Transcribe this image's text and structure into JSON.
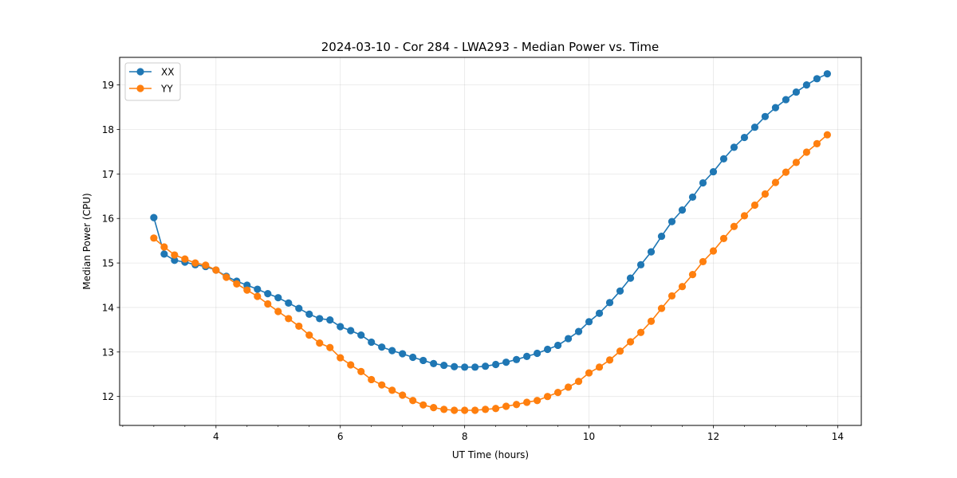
{
  "chart_data": {
    "type": "line",
    "title": "2024-03-10 - Cor 284 - LWA293 - Median Power vs. Time",
    "xlabel": "UT Time (hours)",
    "ylabel": "Median Power (CPU)",
    "xlim": [
      2.45,
      14.38
    ],
    "ylim": [
      11.35,
      19.62
    ],
    "xticks": [
      4,
      6,
      8,
      10,
      12,
      14
    ],
    "yticks": [
      12,
      13,
      14,
      15,
      16,
      17,
      18,
      19
    ],
    "grid": true,
    "legend_position": "top-left",
    "x": [
      3.0,
      3.1667,
      3.3333,
      3.5,
      3.6667,
      3.8333,
      4.0,
      4.1667,
      4.3333,
      4.5,
      4.6667,
      4.8333,
      5.0,
      5.1667,
      5.3333,
      5.5,
      5.6667,
      5.8333,
      6.0,
      6.1667,
      6.3333,
      6.5,
      6.6667,
      6.8333,
      7.0,
      7.1667,
      7.3333,
      7.5,
      7.6667,
      7.8333,
      8.0,
      8.1667,
      8.3333,
      8.5,
      8.6667,
      8.8333,
      9.0,
      9.1667,
      9.3333,
      9.5,
      9.6667,
      9.8333,
      10.0,
      10.1667,
      10.3333,
      10.5,
      10.6667,
      10.8333,
      11.0,
      11.1667,
      11.3333,
      11.5,
      11.6667,
      11.8333,
      12.0,
      12.1667,
      12.3333,
      12.5,
      12.6667,
      12.8333,
      13.0,
      13.1667,
      13.3333,
      13.5,
      13.6667,
      13.8333
    ],
    "series": [
      {
        "name": "XX",
        "color": "#1f77b4",
        "values": [
          16.02,
          15.2,
          15.06,
          15.02,
          14.96,
          14.92,
          14.84,
          14.7,
          14.59,
          14.5,
          14.41,
          14.31,
          14.22,
          14.1,
          13.98,
          13.85,
          13.75,
          13.72,
          13.57,
          13.48,
          13.38,
          13.22,
          13.11,
          13.03,
          12.96,
          12.88,
          12.81,
          12.74,
          12.7,
          12.67,
          12.66,
          12.66,
          12.68,
          12.72,
          12.77,
          12.83,
          12.9,
          12.97,
          13.06,
          13.15,
          13.3,
          13.46,
          13.68,
          13.87,
          14.11,
          14.37,
          14.66,
          14.96,
          15.25,
          15.6,
          15.93,
          16.19,
          16.48,
          16.8,
          17.05,
          17.34,
          17.6,
          17.82,
          18.05,
          18.29,
          18.49,
          18.67,
          18.84,
          19.0,
          19.14,
          19.25
        ]
      },
      {
        "name": "YY",
        "color": "#ff7f0e",
        "values": [
          15.56,
          15.36,
          15.18,
          15.09,
          15.0,
          14.95,
          14.84,
          14.68,
          14.53,
          14.39,
          14.25,
          14.08,
          13.91,
          13.75,
          13.58,
          13.38,
          13.2,
          13.1,
          12.87,
          12.71,
          12.56,
          12.38,
          12.26,
          12.14,
          12.03,
          11.91,
          11.81,
          11.75,
          11.71,
          11.69,
          11.69,
          11.69,
          11.71,
          11.73,
          11.78,
          11.82,
          11.87,
          11.91,
          12.0,
          12.09,
          12.21,
          12.34,
          12.53,
          12.66,
          12.82,
          13.02,
          13.23,
          13.44,
          13.69,
          13.98,
          14.26,
          14.47,
          14.74,
          15.03,
          15.27,
          15.55,
          15.82,
          16.06,
          16.3,
          16.55,
          16.81,
          17.04,
          17.26,
          17.49,
          17.68,
          17.88
        ]
      }
    ]
  }
}
